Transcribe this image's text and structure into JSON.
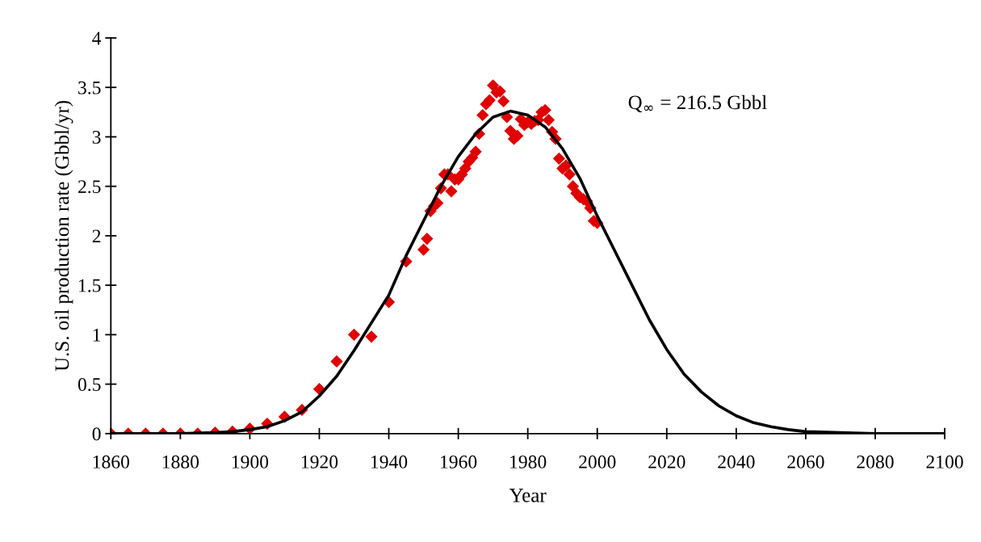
{
  "chart_data": {
    "type": "scatter",
    "xlabel": "Year",
    "ylabel": "U.S. oil production rate (Gbbl/yr)",
    "annotations": [
      "Q$_{∞}$ = 216.5 Gbbl"
    ],
    "xlim": [
      1860,
      2100
    ],
    "xticks": [
      1860,
      1880,
      1900,
      1920,
      1940,
      1960,
      1980,
      2000,
      2020,
      2040,
      2060,
      2080,
      2100
    ],
    "ylim": [
      0,
      4
    ],
    "yticks": [
      0,
      {
        "value": 0.5,
        "label": "0.5"
      },
      1,
      {
        "value": 1.5,
        "label": "1.5"
      },
      2,
      {
        "value": 2.5,
        "label": "2.5"
      },
      3,
      {
        "value": 3.5,
        "label": "3.5"
      },
      4
    ],
    "grid": false,
    "legend": false,
    "series": [
      {
        "marker": "diamond",
        "color": "#e00000",
        "x": [
          1860,
          1865,
          1870,
          1875,
          1880,
          1885,
          1890,
          1895,
          1900,
          1905,
          1910,
          1915,
          1920,
          1925,
          1930,
          1935,
          1940,
          1945,
          1950,
          1951,
          1952,
          1953,
          1954,
          1955,
          1956,
          1957,
          1958,
          1959,
          1960,
          1961,
          1962,
          1963,
          1964,
          1965,
          1966,
          1967,
          1968,
          1969,
          1970,
          1971,
          1972,
          1973,
          1974,
          1975,
          1976,
          1977,
          1978,
          1979,
          1980,
          1981,
          1982,
          1983,
          1984,
          1985,
          1986,
          1987,
          1988,
          1989,
          1990,
          1991,
          1992,
          1993,
          1994,
          1995,
          1996,
          1997,
          1998,
          1999,
          2000
        ],
        "values": [
          0,
          0,
          0,
          0,
          0,
          0,
          0.01,
          0.02,
          0.05,
          0.1,
          0.17,
          0.24,
          0.45,
          0.73,
          1.0,
          0.98,
          1.33,
          1.74,
          1.86,
          1.97,
          2.25,
          2.3,
          2.33,
          2.48,
          2.62,
          2.62,
          2.45,
          2.57,
          2.57,
          2.62,
          2.68,
          2.75,
          2.79,
          2.85,
          3.03,
          3.22,
          3.33,
          3.37,
          3.52,
          3.45,
          3.46,
          3.36,
          3.2,
          3.06,
          2.98,
          3.01,
          3.18,
          3.12,
          3.15,
          3.13,
          3.16,
          3.17,
          3.25,
          3.27,
          3.17,
          3.05,
          2.98,
          2.78,
          2.68,
          2.71,
          2.62,
          2.5,
          2.43,
          2.39,
          2.37,
          2.35,
          2.28,
          2.15,
          2.13
        ]
      },
      {
        "type": "line",
        "marker": "none",
        "line_style": "solid",
        "color": "#000000",
        "x": [
          1860,
          1870,
          1880,
          1890,
          1895,
          1900,
          1905,
          1910,
          1915,
          1920,
          1925,
          1930,
          1935,
          1940,
          1945,
          1950,
          1955,
          1960,
          1965,
          1970,
          1975,
          1980,
          1985,
          1990,
          1995,
          2000,
          2005,
          2010,
          2015,
          2020,
          2025,
          2030,
          2035,
          2040,
          2045,
          2050,
          2055,
          2060,
          2070,
          2080,
          2100
        ],
        "values": [
          0,
          0,
          0,
          0.01,
          0.02,
          0.04,
          0.07,
          0.13,
          0.22,
          0.38,
          0.58,
          0.84,
          1.12,
          1.4,
          1.8,
          2.15,
          2.5,
          2.8,
          3.03,
          3.2,
          3.26,
          3.22,
          3.1,
          2.88,
          2.58,
          2.2,
          1.85,
          1.5,
          1.15,
          0.85,
          0.6,
          0.42,
          0.28,
          0.18,
          0.11,
          0.07,
          0.04,
          0.02,
          0.01,
          0,
          0
        ]
      }
    ]
  }
}
